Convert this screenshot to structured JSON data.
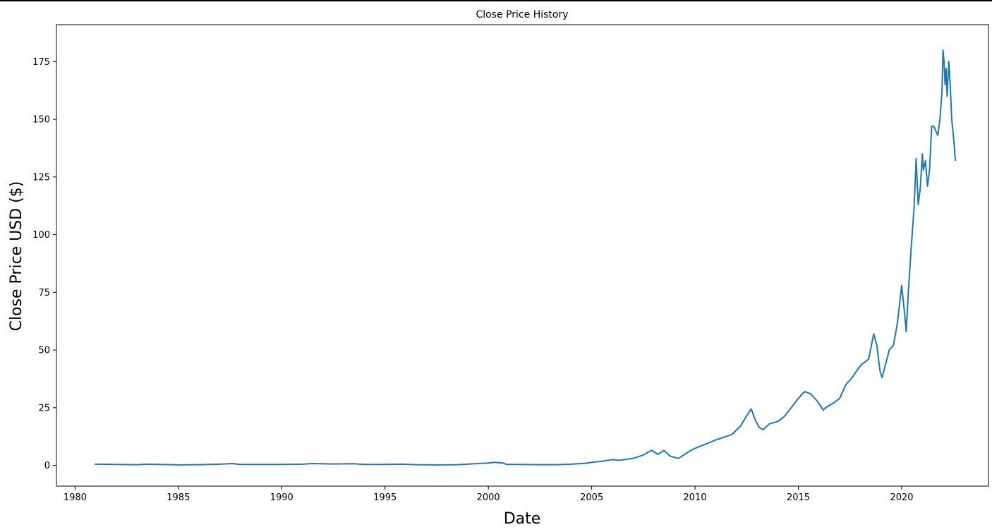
{
  "chart_data": {
    "type": "line",
    "title": "Close Price History",
    "xlabel": "Date",
    "ylabel": "Close Price USD ($)",
    "xlim": [
      1979.1,
      2024.2
    ],
    "ylim": [
      -9,
      191
    ],
    "x_ticks": [
      1980,
      1985,
      1990,
      1995,
      2000,
      2005,
      2010,
      2015,
      2020
    ],
    "y_ticks": [
      0,
      25,
      50,
      75,
      100,
      125,
      150,
      175
    ],
    "grid": false,
    "legend": "none",
    "colors": {
      "line": "#1f77b4"
    },
    "series": [
      {
        "x": [
          1980.95,
          1983.0,
          1983.5,
          1985.0,
          1986.0,
          1987.0,
          1987.6,
          1988.0,
          1990.0,
          1991.0,
          1991.5,
          1992.5,
          1993.5,
          1994.0,
          1995.0,
          1995.8,
          1996.5,
          1997.5,
          1998.5,
          1999.5,
          2000.0,
          2000.3,
          2000.7,
          2000.9,
          2001.5,
          2002.5,
          2003.3,
          2004.0,
          2004.7,
          2005.0,
          2005.5,
          2006.0,
          2006.3,
          2006.6,
          2007.0,
          2007.5,
          2007.9,
          2008.2,
          2008.5,
          2008.8,
          2009.2,
          2009.5,
          2009.9,
          2010.3,
          2010.6,
          2011.0,
          2011.5,
          2011.8,
          2012.2,
          2012.5,
          2012.72,
          2012.9,
          2013.1,
          2013.3,
          2013.6,
          2014.0,
          2014.3,
          2014.7,
          2015.0,
          2015.3,
          2015.6,
          2015.9,
          2016.2,
          2016.4,
          2016.7,
          2017.0,
          2017.3,
          2017.6,
          2017.9,
          2018.1,
          2018.4,
          2018.65,
          2018.8,
          2018.95,
          2019.05,
          2019.2,
          2019.4,
          2019.6,
          2019.8,
          2020.0,
          2020.15,
          2020.22,
          2020.32,
          2020.45,
          2020.6,
          2020.7,
          2020.8,
          2020.9,
          2021.0,
          2021.05,
          2021.15,
          2021.25,
          2021.35,
          2021.45,
          2021.55,
          2021.65,
          2021.75,
          2021.85,
          2021.95,
          2022.0,
          2022.05,
          2022.1,
          2022.15,
          2022.2,
          2022.28,
          2022.35,
          2022.42,
          2022.48,
          2022.55,
          2022.6
        ],
        "y": [
          0.5,
          0.3,
          0.5,
          0.2,
          0.3,
          0.5,
          0.8,
          0.4,
          0.4,
          0.5,
          0.8,
          0.6,
          0.7,
          0.4,
          0.4,
          0.5,
          0.3,
          0.2,
          0.3,
          0.8,
          1.0,
          1.3,
          1.0,
          0.4,
          0.4,
          0.3,
          0.3,
          0.5,
          0.9,
          1.3,
          1.8,
          2.5,
          2.2,
          2.5,
          3.0,
          4.5,
          6.5,
          4.8,
          6.5,
          4.0,
          3.0,
          4.8,
          7.0,
          8.5,
          9.5,
          11.0,
          12.5,
          13.5,
          17.0,
          21.5,
          24.5,
          20.0,
          16.5,
          15.5,
          18.0,
          19.0,
          21.0,
          25.5,
          29.0,
          32.0,
          31.0,
          28.0,
          24.0,
          25.5,
          27.0,
          29.0,
          35.0,
          38.0,
          42.0,
          44.0,
          46.0,
          57.0,
          52.0,
          41.0,
          38.0,
          43.0,
          50.0,
          52.0,
          62.0,
          78.0,
          65.0,
          58.0,
          75.0,
          93.0,
          112.0,
          133.0,
          113.0,
          120.0,
          135.0,
          128.0,
          132.0,
          121.0,
          128.0,
          147.0,
          147.0,
          145.0,
          143.0,
          150.0,
          162.0,
          180.0,
          175.0,
          165.0,
          172.0,
          160.0,
          175.0,
          165.0,
          150.0,
          145.0,
          138.0,
          132.0
        ]
      }
    ]
  }
}
